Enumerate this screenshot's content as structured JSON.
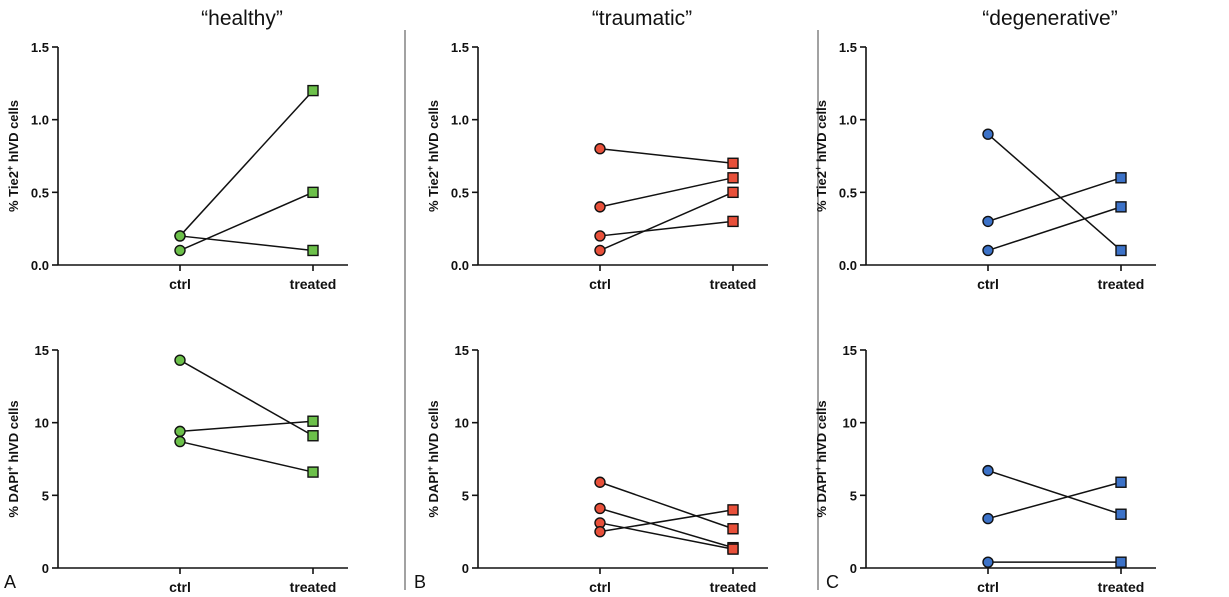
{
  "column_titles": [
    "“healthy”",
    "“traumatic”",
    "“degenerative”"
  ],
  "panel_letters": [
    "A",
    "B",
    "C"
  ],
  "colors": {
    "healthy": "#6cc04a",
    "traumatic": "#e8503a",
    "degenerative": "#3c72c8",
    "axis": "#111111"
  },
  "chart_data": [
    {
      "type": "line",
      "group": "healthy",
      "ylabel": "% Tie2+ hIVD cells",
      "categories": [
        "ctrl",
        "treated"
      ],
      "ylim": [
        0,
        1.5
      ],
      "yticks": [
        "0.0",
        "0.5",
        "1.0",
        "1.5"
      ],
      "yticks_values": [
        0,
        0.5,
        1.0,
        1.5
      ],
      "series": [
        {
          "values": [
            0.2,
            1.2
          ]
        },
        {
          "values": [
            0.1,
            0.5
          ]
        },
        {
          "values": [
            0.2,
            0.1
          ]
        }
      ]
    },
    {
      "type": "line",
      "group": "traumatic",
      "ylabel": "% Tie2+ hIVD cells",
      "categories": [
        "ctrl",
        "treated"
      ],
      "ylim": [
        0,
        1.5
      ],
      "yticks": [
        "0.0",
        "0.5",
        "1.0",
        "1.5"
      ],
      "yticks_values": [
        0,
        0.5,
        1.0,
        1.5
      ],
      "series": [
        {
          "values": [
            0.8,
            0.7
          ]
        },
        {
          "values": [
            0.4,
            0.6
          ]
        },
        {
          "values": [
            0.2,
            0.3
          ]
        },
        {
          "values": [
            0.1,
            0.5
          ]
        }
      ]
    },
    {
      "type": "line",
      "group": "degenerative",
      "ylabel": "% Tie2+ hIVD cells",
      "categories": [
        "ctrl",
        "treated"
      ],
      "ylim": [
        0,
        1.5
      ],
      "yticks": [
        "0.0",
        "0.5",
        "1.0",
        "1.5"
      ],
      "yticks_values": [
        0,
        0.5,
        1.0,
        1.5
      ],
      "series": [
        {
          "values": [
            0.9,
            0.1
          ]
        },
        {
          "values": [
            0.3,
            0.6
          ]
        },
        {
          "values": [
            0.1,
            0.4
          ]
        }
      ]
    },
    {
      "type": "line",
      "group": "healthy",
      "ylabel": "% DAPI+ hIVD cells",
      "categories": [
        "ctrl",
        "treated"
      ],
      "ylim": [
        0,
        15
      ],
      "yticks": [
        "0",
        "5",
        "10",
        "15"
      ],
      "yticks_values": [
        0,
        5,
        10,
        15
      ],
      "series": [
        {
          "values": [
            14.3,
            9.1
          ]
        },
        {
          "values": [
            9.4,
            10.1
          ]
        },
        {
          "values": [
            8.7,
            6.6
          ]
        }
      ]
    },
    {
      "type": "line",
      "group": "traumatic",
      "ylabel": "% DAPI+ hIVD cells",
      "categories": [
        "ctrl",
        "treated"
      ],
      "ylim": [
        0,
        15
      ],
      "yticks": [
        "0",
        "5",
        "10",
        "15"
      ],
      "yticks_values": [
        0,
        5,
        10,
        15
      ],
      "series": [
        {
          "values": [
            5.9,
            2.7
          ]
        },
        {
          "values": [
            4.1,
            1.4
          ]
        },
        {
          "values": [
            3.1,
            1.3
          ]
        },
        {
          "values": [
            2.5,
            4.0
          ]
        }
      ]
    },
    {
      "type": "line",
      "group": "degenerative",
      "ylabel": "% DAPI+ hIVD cells",
      "categories": [
        "ctrl",
        "treated"
      ],
      "ylim": [
        0,
        15
      ],
      "yticks": [
        "0",
        "5",
        "10",
        "15"
      ],
      "yticks_values": [
        0,
        5,
        10,
        15
      ],
      "series": [
        {
          "values": [
            6.7,
            3.7
          ]
        },
        {
          "values": [
            3.4,
            5.9
          ]
        },
        {
          "values": [
            0.4,
            0.4
          ]
        }
      ]
    }
  ]
}
